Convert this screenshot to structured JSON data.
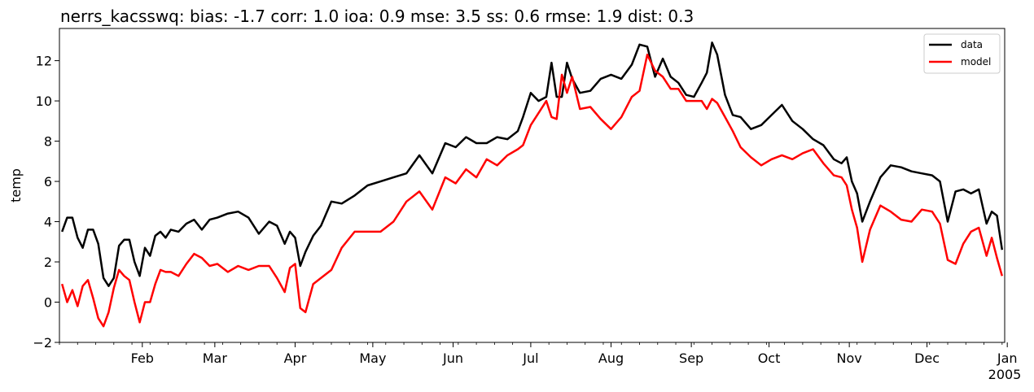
{
  "chart_data": {
    "type": "line",
    "title": "nerrs_kacsswq: bias: -1.7  corr: 1.0  ioa: 0.9  mse: 3.5  ss: 0.6  rmse: 1.9  dist: 0.3",
    "xlabel": "",
    "ylabel": "temp",
    "xlim": [
      "2004-12-31",
      "2005-12-31"
    ],
    "ylim": [
      -2,
      13.6
    ],
    "yticks": [
      -2,
      0,
      2,
      4,
      6,
      8,
      10,
      12
    ],
    "xticks": [
      {
        "date": "2005-02-01",
        "label": "Feb"
      },
      {
        "date": "2005-03-01",
        "label": "Mar"
      },
      {
        "date": "2005-04-01",
        "label": "Apr"
      },
      {
        "date": "2005-05-01",
        "label": "May"
      },
      {
        "date": "2005-06-01",
        "label": "Jun"
      },
      {
        "date": "2005-07-01",
        "label": "Jul"
      },
      {
        "date": "2005-08-01",
        "label": "Aug"
      },
      {
        "date": "2005-09-01",
        "label": "Sep"
      },
      {
        "date": "2005-10-01",
        "label": "Oct"
      },
      {
        "date": "2005-11-01",
        "label": "Nov"
      },
      {
        "date": "2005-12-01",
        "label": "Dec"
      },
      {
        "date": "2006-01-01",
        "label": "Jan"
      }
    ],
    "year_label": "2005",
    "grid": false,
    "legend": "top-right",
    "series": [
      {
        "name": "data",
        "color": "#000000",
        "x": [
          "2005-01-01",
          "2005-01-03",
          "2005-01-05",
          "2005-01-07",
          "2005-01-09",
          "2005-01-11",
          "2005-01-13",
          "2005-01-15",
          "2005-01-17",
          "2005-01-19",
          "2005-01-21",
          "2005-01-23",
          "2005-01-25",
          "2005-01-27",
          "2005-01-29",
          "2005-01-31",
          "2005-02-02",
          "2005-02-04",
          "2005-02-06",
          "2005-02-08",
          "2005-02-10",
          "2005-02-12",
          "2005-02-15",
          "2005-02-18",
          "2005-02-21",
          "2005-02-24",
          "2005-02-27",
          "2005-03-02",
          "2005-03-06",
          "2005-03-10",
          "2005-03-14",
          "2005-03-18",
          "2005-03-22",
          "2005-03-25",
          "2005-03-28",
          "2005-03-30",
          "2005-04-01",
          "2005-04-03",
          "2005-04-05",
          "2005-04-08",
          "2005-04-11",
          "2005-04-15",
          "2005-04-19",
          "2005-04-24",
          "2005-04-29",
          "2005-05-04",
          "2005-05-09",
          "2005-05-14",
          "2005-05-19",
          "2005-05-24",
          "2005-05-29",
          "2005-06-02",
          "2005-06-06",
          "2005-06-10",
          "2005-06-14",
          "2005-06-18",
          "2005-06-22",
          "2005-06-26",
          "2005-06-28",
          "2005-07-01",
          "2005-07-04",
          "2005-07-07",
          "2005-07-09",
          "2005-07-11",
          "2005-07-13",
          "2005-07-15",
          "2005-07-17",
          "2005-07-20",
          "2005-07-24",
          "2005-07-28",
          "2005-08-01",
          "2005-08-05",
          "2005-08-09",
          "2005-08-12",
          "2005-08-15",
          "2005-08-18",
          "2005-08-21",
          "2005-08-24",
          "2005-08-27",
          "2005-08-30",
          "2005-09-02",
          "2005-09-05",
          "2005-09-07",
          "2005-09-09",
          "2005-09-11",
          "2005-09-14",
          "2005-09-17",
          "2005-09-20",
          "2005-09-24",
          "2005-09-28",
          "2005-10-02",
          "2005-10-06",
          "2005-10-10",
          "2005-10-14",
          "2005-10-18",
          "2005-10-22",
          "2005-10-26",
          "2005-10-29",
          "2005-10-31",
          "2005-11-02",
          "2005-11-04",
          "2005-11-06",
          "2005-11-09",
          "2005-11-13",
          "2005-11-17",
          "2005-11-21",
          "2005-11-25",
          "2005-11-29",
          "2005-12-03",
          "2005-12-06",
          "2005-12-09",
          "2005-12-12",
          "2005-12-15",
          "2005-12-18",
          "2005-12-21",
          "2005-12-24",
          "2005-12-26",
          "2005-12-28",
          "2005-12-30"
        ],
        "y": [
          3.5,
          4.2,
          4.2,
          3.2,
          2.7,
          3.6,
          3.6,
          2.9,
          1.2,
          0.8,
          1.2,
          2.8,
          3.1,
          3.1,
          2.0,
          1.3,
          2.7,
          2.3,
          3.3,
          3.5,
          3.2,
          3.6,
          3.5,
          3.9,
          4.1,
          3.6,
          4.1,
          4.2,
          4.4,
          4.5,
          4.2,
          3.4,
          4.0,
          3.8,
          2.9,
          3.5,
          3.2,
          1.8,
          2.5,
          3.3,
          3.8,
          5.0,
          4.9,
          5.3,
          5.8,
          6.0,
          6.2,
          6.4,
          7.3,
          6.4,
          7.9,
          7.7,
          8.2,
          7.9,
          7.9,
          8.2,
          8.1,
          8.5,
          9.2,
          10.4,
          10.0,
          10.2,
          11.9,
          10.2,
          10.2,
          11.9,
          11.1,
          10.4,
          10.5,
          11.1,
          11.3,
          11.1,
          11.8,
          12.8,
          12.7,
          11.2,
          12.1,
          11.2,
          10.9,
          10.3,
          10.2,
          10.9,
          11.4,
          12.9,
          12.3,
          10.3,
          9.3,
          9.2,
          8.6,
          8.8,
          9.3,
          9.8,
          9.0,
          8.6,
          8.1,
          7.8,
          7.1,
          6.9,
          7.2,
          6.0,
          5.4,
          4.0,
          5.0,
          6.2,
          6.8,
          6.7,
          6.5,
          6.4,
          6.3,
          6.0,
          4.0,
          5.5,
          5.6,
          5.4,
          5.6,
          3.9,
          4.5,
          4.3,
          2.6
        ]
      },
      {
        "name": "model",
        "color": "#ff0000",
        "x": [
          "2005-01-01",
          "2005-01-03",
          "2005-01-05",
          "2005-01-07",
          "2005-01-09",
          "2005-01-11",
          "2005-01-13",
          "2005-01-15",
          "2005-01-17",
          "2005-01-19",
          "2005-01-21",
          "2005-01-23",
          "2005-01-25",
          "2005-01-27",
          "2005-01-29",
          "2005-01-31",
          "2005-02-02",
          "2005-02-04",
          "2005-02-06",
          "2005-02-08",
          "2005-02-10",
          "2005-02-12",
          "2005-02-15",
          "2005-02-18",
          "2005-02-21",
          "2005-02-24",
          "2005-02-27",
          "2005-03-02",
          "2005-03-06",
          "2005-03-10",
          "2005-03-14",
          "2005-03-18",
          "2005-03-22",
          "2005-03-25",
          "2005-03-28",
          "2005-03-30",
          "2005-04-01",
          "2005-04-03",
          "2005-04-05",
          "2005-04-08",
          "2005-04-11",
          "2005-04-15",
          "2005-04-19",
          "2005-04-24",
          "2005-04-29",
          "2005-05-04",
          "2005-05-09",
          "2005-05-14",
          "2005-05-19",
          "2005-05-24",
          "2005-05-29",
          "2005-06-02",
          "2005-06-06",
          "2005-06-10",
          "2005-06-14",
          "2005-06-18",
          "2005-06-22",
          "2005-06-26",
          "2005-06-28",
          "2005-07-01",
          "2005-07-04",
          "2005-07-07",
          "2005-07-09",
          "2005-07-11",
          "2005-07-13",
          "2005-07-15",
          "2005-07-17",
          "2005-07-20",
          "2005-07-24",
          "2005-07-28",
          "2005-08-01",
          "2005-08-05",
          "2005-08-09",
          "2005-08-12",
          "2005-08-15",
          "2005-08-18",
          "2005-08-21",
          "2005-08-24",
          "2005-08-27",
          "2005-08-30",
          "2005-09-02",
          "2005-09-05",
          "2005-09-07",
          "2005-09-09",
          "2005-09-11",
          "2005-09-14",
          "2005-09-17",
          "2005-09-20",
          "2005-09-24",
          "2005-09-28",
          "2005-10-02",
          "2005-10-06",
          "2005-10-10",
          "2005-10-14",
          "2005-10-18",
          "2005-10-22",
          "2005-10-26",
          "2005-10-29",
          "2005-10-31",
          "2005-11-02",
          "2005-11-04",
          "2005-11-06",
          "2005-11-09",
          "2005-11-13",
          "2005-11-17",
          "2005-11-21",
          "2005-11-25",
          "2005-11-29",
          "2005-12-03",
          "2005-12-06",
          "2005-12-09",
          "2005-12-12",
          "2005-12-15",
          "2005-12-18",
          "2005-12-21",
          "2005-12-24",
          "2005-12-26",
          "2005-12-28",
          "2005-12-30"
        ],
        "y": [
          0.9,
          0.0,
          0.6,
          -0.2,
          0.8,
          1.1,
          0.2,
          -0.8,
          -1.2,
          -0.5,
          0.7,
          1.6,
          1.3,
          1.1,
          0.0,
          -1.0,
          0.0,
          0.0,
          0.9,
          1.6,
          1.5,
          1.5,
          1.3,
          1.9,
          2.4,
          2.2,
          1.8,
          1.9,
          1.5,
          1.8,
          1.6,
          1.8,
          1.8,
          1.2,
          0.5,
          1.7,
          1.9,
          -0.3,
          -0.5,
          0.9,
          1.2,
          1.6,
          2.7,
          3.5,
          3.5,
          3.5,
          4.0,
          5.0,
          5.5,
          4.6,
          6.2,
          5.9,
          6.6,
          6.2,
          7.1,
          6.8,
          7.3,
          7.6,
          7.8,
          8.8,
          9.4,
          10.0,
          9.2,
          9.1,
          11.3,
          10.4,
          11.2,
          9.6,
          9.7,
          9.1,
          8.6,
          9.2,
          10.2,
          10.5,
          12.3,
          11.5,
          11.2,
          10.6,
          10.6,
          10.0,
          10.0,
          10.0,
          9.6,
          10.1,
          9.9,
          9.2,
          8.5,
          7.7,
          7.2,
          6.8,
          7.1,
          7.3,
          7.1,
          7.4,
          7.6,
          6.9,
          6.3,
          6.2,
          5.8,
          4.6,
          3.7,
          2.0,
          3.6,
          4.8,
          4.5,
          4.1,
          4.0,
          4.6,
          4.5,
          3.9,
          2.1,
          1.9,
          2.9,
          3.5,
          3.7,
          2.3,
          3.2,
          2.2,
          1.3
        ]
      }
    ]
  }
}
